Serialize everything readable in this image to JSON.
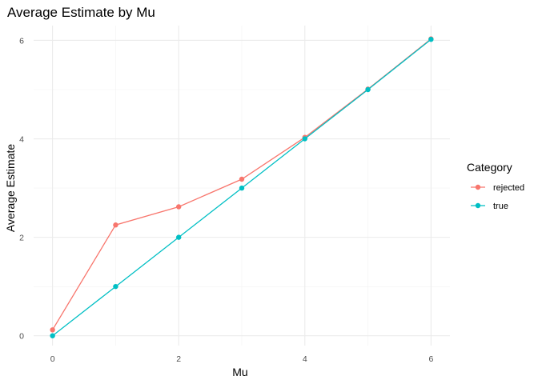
{
  "chart_data": {
    "type": "line",
    "title": "Average Estimate by Mu",
    "xlabel": "Mu",
    "ylabel": "Average Estimate",
    "x": [
      0,
      1,
      2,
      3,
      4,
      5,
      6
    ],
    "xlim": [
      -0.3,
      6.3
    ],
    "ylim": [
      -0.2,
      6.3
    ],
    "xticks": [
      0,
      2,
      4,
      6
    ],
    "yticks": [
      0,
      2,
      4,
      6
    ],
    "grid": true,
    "legend": {
      "title": "Category",
      "placement": "right"
    },
    "series": [
      {
        "name": "rejected",
        "color": "#F8766D",
        "values": [
          0.12,
          2.25,
          2.62,
          3.18,
          4.03,
          5.01,
          6.03
        ]
      },
      {
        "name": "true",
        "color": "#00BFC4",
        "values": [
          0.0,
          1.0,
          2.0,
          3.0,
          4.0,
          5.0,
          6.02
        ]
      }
    ]
  }
}
